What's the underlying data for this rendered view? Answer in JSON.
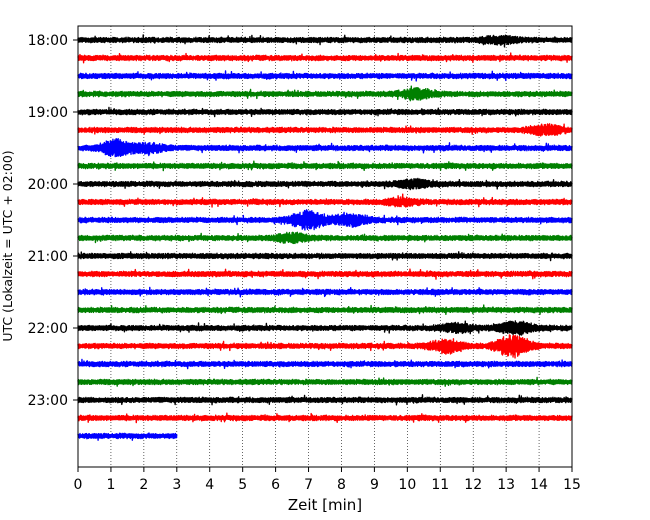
{
  "chart_data": {
    "type": "line",
    "title": "",
    "xlabel": "Zeit  [min]",
    "ylabel": "UTC (Lokalzeit = UTC + 02:00)",
    "xlim": [
      0,
      15
    ],
    "xticks": [
      "0",
      "1",
      "2",
      "3",
      "4",
      "5",
      "6",
      "7",
      "8",
      "9",
      "10",
      "11",
      "12",
      "13",
      "14",
      "15"
    ],
    "yticks": [
      "18:00",
      "19:00",
      "20:00",
      "21:00",
      "22:00",
      "23:00"
    ],
    "grid": "vertical-dotted",
    "color_cycle": [
      "#000000",
      "#ff0000",
      "#0000ff",
      "#008000"
    ],
    "traces": [
      {
        "start": "18:00",
        "end_min": 15,
        "events": [
          [
            12.8,
            1.2
          ]
        ]
      },
      {
        "start": "18:15",
        "end_min": 15,
        "events": []
      },
      {
        "start": "18:30",
        "end_min": 15,
        "events": []
      },
      {
        "start": "18:45",
        "end_min": 15,
        "events": [
          [
            10.3,
            1.6
          ]
        ]
      },
      {
        "start": "19:00",
        "end_min": 15,
        "events": []
      },
      {
        "start": "19:15",
        "end_min": 15,
        "events": [
          [
            14.2,
            1.8
          ]
        ]
      },
      {
        "start": "19:30",
        "end_min": 15,
        "events": [
          [
            1.2,
            3.0
          ],
          [
            2.2,
            1.4
          ]
        ]
      },
      {
        "start": "19:45",
        "end_min": 15,
        "events": []
      },
      {
        "start": "20:00",
        "end_min": 15,
        "events": [
          [
            10.2,
            1.3
          ]
        ]
      },
      {
        "start": "20:15",
        "end_min": 15,
        "events": [
          [
            9.8,
            1.2
          ]
        ]
      },
      {
        "start": "20:30",
        "end_min": 15,
        "events": [
          [
            7.0,
            3.4
          ],
          [
            8.3,
            2.0
          ]
        ]
      },
      {
        "start": "20:45",
        "end_min": 15,
        "events": [
          [
            6.5,
            1.5
          ]
        ]
      },
      {
        "start": "21:00",
        "end_min": 15,
        "events": []
      },
      {
        "start": "21:15",
        "end_min": 15,
        "events": []
      },
      {
        "start": "21:30",
        "end_min": 15,
        "events": []
      },
      {
        "start": "21:45",
        "end_min": 15,
        "events": []
      },
      {
        "start": "22:00",
        "end_min": 15,
        "events": [
          [
            11.5,
            1.3
          ],
          [
            13.3,
            2.2
          ]
        ]
      },
      {
        "start": "22:15",
        "end_min": 15,
        "events": [
          [
            11.2,
            2.4
          ],
          [
            13.2,
            4.0
          ]
        ]
      },
      {
        "start": "22:30",
        "end_min": 15,
        "events": []
      },
      {
        "start": "22:45",
        "end_min": 15,
        "events": []
      },
      {
        "start": "23:00",
        "end_min": 15,
        "events": []
      },
      {
        "start": "23:15",
        "end_min": 15,
        "events": []
      },
      {
        "start": "23:30",
        "end_min": 3,
        "events": []
      }
    ]
  }
}
